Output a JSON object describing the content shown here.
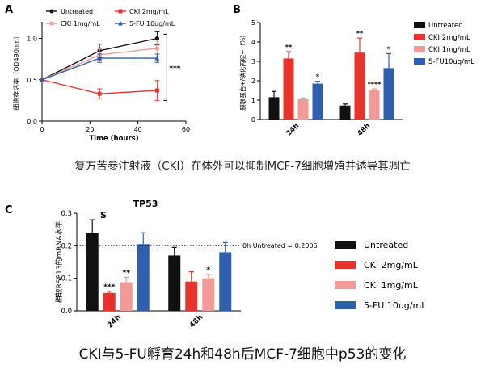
{
  "captions": {
    "top": "复方苦参注射液（CKI）在体外可以抑制MCF-7细胞增殖并诱导其凋亡",
    "bottom": "CKI与5-FU孵育24h和48h后MCF-7细胞中p53的变化"
  },
  "colors": {
    "untreated": "#111111",
    "cki2": "#e8322c",
    "cki1": "#f29a98",
    "fu": "#2f5fad"
  },
  "chart_data": [
    {
      "panel": "A",
      "type": "line",
      "title": "",
      "xlabel": "Time (hours)",
      "ylabel": "细胞存活率（OD490nm）",
      "xlim": [
        0,
        60
      ],
      "ylim": [
        0.0,
        1.2
      ],
      "xticks": [
        "0",
        "20",
        "40",
        "60"
      ],
      "yticks": [
        "0.0",
        "0.5",
        "1.0"
      ],
      "x": [
        0,
        24,
        48
      ],
      "series": [
        {
          "name": "Untreated",
          "color_key": "untreated",
          "marker": "circle",
          "values": [
            0.5,
            0.85,
            1.0
          ],
          "errors": [
            0.02,
            0.08,
            0.08
          ]
        },
        {
          "name": "CKI 1mg/mL",
          "color_key": "cki1",
          "marker": "circle",
          "values": [
            0.5,
            0.8,
            0.88
          ],
          "errors": [
            0.02,
            0.07,
            0.1
          ]
        },
        {
          "name": "CKI 2mg/mL",
          "color_key": "cki2",
          "marker": "square",
          "values": [
            0.5,
            0.33,
            0.37
          ],
          "errors": [
            0.02,
            0.06,
            0.12
          ]
        },
        {
          "name": "5-FU 10ug/mL",
          "color_key": "fu",
          "marker": "triangle",
          "values": [
            0.5,
            0.76,
            0.76
          ],
          "errors": [
            0.02,
            0.05,
            0.05
          ]
        }
      ],
      "annotations": [
        "***"
      ]
    },
    {
      "panel": "B",
      "type": "bar",
      "title": "",
      "ylabel": "膜联蛋白+/碘化丙啶+（%）",
      "ylim": [
        0,
        5
      ],
      "yticks": [
        "0",
        "1",
        "2",
        "3",
        "4",
        "5"
      ],
      "categories": [
        "24h",
        "48h"
      ],
      "series": [
        {
          "name": "Untreated",
          "color_key": "untreated",
          "values": [
            1.15,
            0.72
          ],
          "errors": [
            0.3,
            0.08
          ],
          "labels": [
            "",
            ""
          ]
        },
        {
          "name": "CKI 2mg/mL",
          "color_key": "cki2",
          "values": [
            3.15,
            3.45
          ],
          "errors": [
            0.35,
            0.75
          ],
          "labels": [
            "**",
            "**"
          ]
        },
        {
          "name": "CKI 1mg/mL",
          "color_key": "cki1",
          "values": [
            1.05,
            1.5
          ],
          "errors": [
            0.06,
            0.08
          ],
          "labels": [
            "",
            "****"
          ]
        },
        {
          "name": "5-FU10ug/mL",
          "color_key": "fu",
          "values": [
            1.85,
            2.65
          ],
          "errors": [
            0.12,
            0.75
          ],
          "labels": [
            "*",
            "*"
          ]
        }
      ]
    },
    {
      "panel": "C",
      "type": "bar",
      "title": "TP53",
      "annotation": "S",
      "ylabel": "相较RSP13的mRNA水平",
      "ylim": [
        0,
        0.3
      ],
      "yticks": [
        "0.0",
        "0.1",
        "0.2",
        "0.3"
      ],
      "categories": [
        "24h",
        "48h"
      ],
      "reference_line": {
        "value": 0.2006,
        "label": "0h Untreated = 0.2006"
      },
      "series": [
        {
          "name": "Untreated",
          "color_key": "untreated",
          "values": [
            0.24,
            0.17
          ],
          "errors": [
            0.04,
            0.025
          ],
          "labels": [
            "",
            ""
          ]
        },
        {
          "name": "CKI 2mg/mL",
          "color_key": "cki2",
          "values": [
            0.055,
            0.09
          ],
          "errors": [
            0.005,
            0.03
          ],
          "labels": [
            "***",
            ""
          ]
        },
        {
          "name": "CKI 1mg/mL",
          "color_key": "cki1",
          "values": [
            0.088,
            0.1
          ],
          "errors": [
            0.015,
            0.012
          ],
          "labels": [
            "**",
            "*"
          ]
        },
        {
          "name": "5-FU 10ug/mL",
          "color_key": "fu",
          "values": [
            0.205,
            0.18
          ],
          "errors": [
            0.035,
            0.03
          ],
          "labels": [
            "",
            ""
          ]
        }
      ]
    }
  ]
}
